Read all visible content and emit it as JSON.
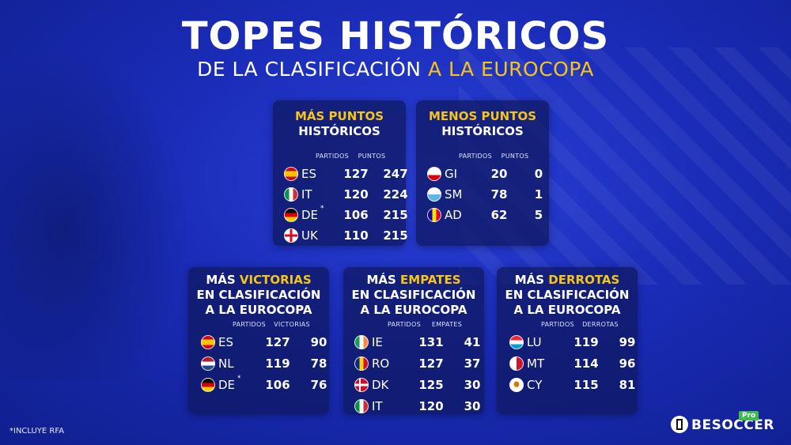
{
  "header": {
    "title": "TOPES HISTÓRICOS",
    "subtitle_part1": "DE LA CLASIFICACIÓN",
    "subtitle_part2": "A LA EUROCOPA"
  },
  "cards": {
    "mas_puntos": {
      "title_a": "MÁS PUNTOS",
      "title_b": "HISTÓRICOS",
      "col1": "PARTIDOS",
      "col2": "PUNTOS",
      "rows": [
        {
          "code": "ES",
          "sup": "",
          "v1": "127",
          "v2": "247",
          "flag": "es"
        },
        {
          "code": "IT",
          "sup": "",
          "v1": "120",
          "v2": "224",
          "flag": "it"
        },
        {
          "code": "DE",
          "sup": "*",
          "v1": "106",
          "v2": "215",
          "flag": "de"
        },
        {
          "code": "UK",
          "sup": "",
          "v1": "110",
          "v2": "215",
          "flag": "en"
        }
      ]
    },
    "menos_puntos": {
      "title_a": "MENOS PUNTOS",
      "title_b": "HISTÓRICOS",
      "col1": "PARTIDOS",
      "col2": "PUNTOS",
      "rows": [
        {
          "code": "GI",
          "sup": "",
          "v1": "20",
          "v2": "0",
          "flag": "gi"
        },
        {
          "code": "SM",
          "sup": "",
          "v1": "78",
          "v2": "1",
          "flag": "sm"
        },
        {
          "code": "AD",
          "sup": "",
          "v1": "62",
          "v2": "5",
          "flag": "ad"
        }
      ]
    },
    "victorias": {
      "title_pre": "MÁS ",
      "title_hl": "VICTORIAS",
      "title_b": "EN CLASIFICACIÓN",
      "title_c": "A LA EUROCOPA",
      "col1": "PARTIDOS",
      "col2": "VICTORIAS",
      "rows": [
        {
          "code": "ES",
          "sup": "",
          "v1": "127",
          "v2": "90",
          "flag": "es"
        },
        {
          "code": "NL",
          "sup": "",
          "v1": "119",
          "v2": "78",
          "flag": "nl"
        },
        {
          "code": "DE",
          "sup": "*",
          "v1": "106",
          "v2": "76",
          "flag": "de"
        }
      ]
    },
    "empates": {
      "title_pre": "MÁS ",
      "title_hl": "EMPATES",
      "title_b": "EN CLASIFICACIÓN",
      "title_c": "A LA EUROCOPA",
      "col1": "PARTIDOS",
      "col2": "EMPATES",
      "rows": [
        {
          "code": "IE",
          "sup": "",
          "v1": "131",
          "v2": "41",
          "flag": "ie"
        },
        {
          "code": "RO",
          "sup": "",
          "v1": "127",
          "v2": "37",
          "flag": "ro"
        },
        {
          "code": "DK",
          "sup": "",
          "v1": "125",
          "v2": "30",
          "flag": "dk"
        },
        {
          "code": "IT",
          "sup": "",
          "v1": "120",
          "v2": "30",
          "flag": "it"
        }
      ]
    },
    "derrotas": {
      "title_pre": "MÁS ",
      "title_hl": "DERROTAS",
      "title_b": "EN CLASIFICACIÓN",
      "title_c": "A LA EUROCOPA",
      "col1": "PARTIDOS",
      "col2": "DERROTAS",
      "rows": [
        {
          "code": "LU",
          "sup": "",
          "v1": "119",
          "v2": "99",
          "flag": "lu"
        },
        {
          "code": "MT",
          "sup": "",
          "v1": "114",
          "v2": "96",
          "flag": "mt"
        },
        {
          "code": "CY",
          "sup": "",
          "v1": "115",
          "v2": "81",
          "flag": "cy"
        }
      ]
    }
  },
  "footnote": "*INCLUYE RFA",
  "brand": {
    "name": "BESOCCER",
    "badge": "Pro"
  },
  "colors": {
    "accent": "#f5c518",
    "card": "#0f1964",
    "background": "#1a2cb8"
  }
}
